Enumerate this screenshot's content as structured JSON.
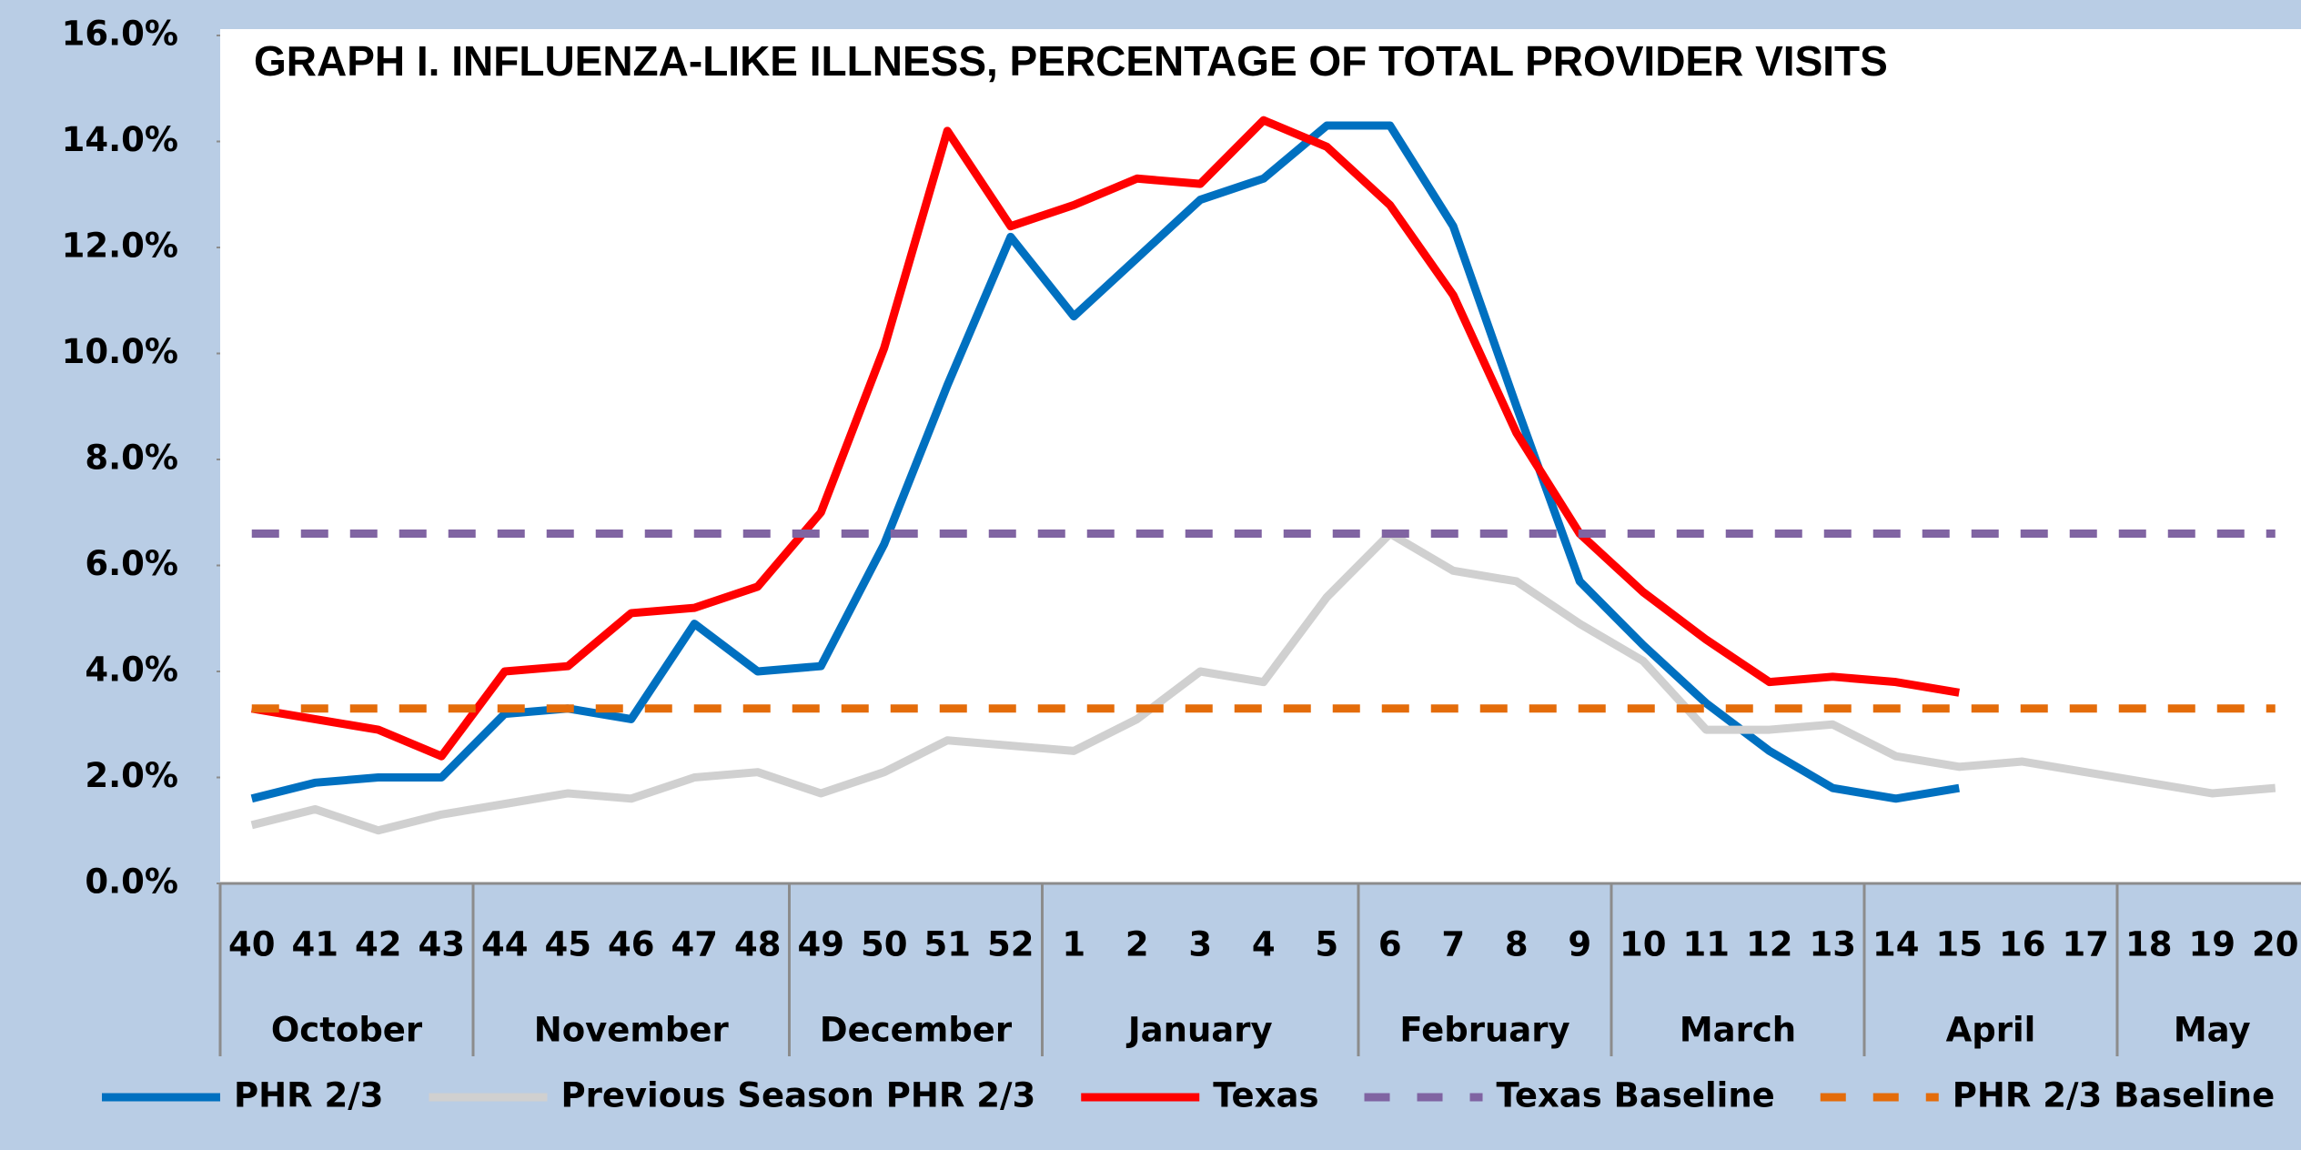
{
  "chart_data": {
    "type": "line",
    "title": "GRAPH I. INFLUENZA-LIKE ILLNESS, PERCENTAGE OF TOTAL PROVIDER VISITS",
    "categories": [
      "40",
      "41",
      "42",
      "43",
      "44",
      "45",
      "46",
      "47",
      "48",
      "49",
      "50",
      "51",
      "52",
      "1",
      "2",
      "3",
      "4",
      "5",
      "6",
      "7",
      "8",
      "9",
      "10",
      "11",
      "12",
      "13",
      "14",
      "15",
      "16",
      "17",
      "18",
      "19",
      "20"
    ],
    "months": [
      "October",
      "November",
      "December",
      "January",
      "February",
      "March",
      "April",
      "May"
    ],
    "series": [
      {
        "name": "PHR 2/3",
        "color": "#0070c0",
        "values": [
          1.6,
          1.9,
          2.0,
          2.0,
          3.2,
          3.3,
          3.1,
          4.9,
          4.0,
          4.1,
          6.4,
          9.4,
          12.2,
          10.7,
          11.8,
          12.9,
          13.3,
          14.3,
          14.3,
          12.4,
          9.0,
          5.7,
          4.5,
          3.4,
          2.5,
          1.8,
          1.6,
          1.8,
          null,
          null,
          null,
          null,
          null
        ]
      },
      {
        "name": "Previous Season PHR 2/3",
        "color": "#d0d0d0",
        "values": [
          1.1,
          1.4,
          1.0,
          1.3,
          1.5,
          1.7,
          1.6,
          2.0,
          2.1,
          1.7,
          2.1,
          2.7,
          2.6,
          2.5,
          3.1,
          4.0,
          3.8,
          5.4,
          6.6,
          5.9,
          5.7,
          4.9,
          4.2,
          2.9,
          2.9,
          3.0,
          2.4,
          2.2,
          2.3,
          2.1,
          1.9,
          1.7,
          1.8
        ]
      },
      {
        "name": "Texas",
        "color": "#ff0000",
        "values": [
          3.3,
          3.1,
          2.9,
          2.4,
          4.0,
          4.1,
          5.1,
          5.2,
          5.6,
          7.0,
          10.1,
          14.2,
          12.4,
          12.8,
          13.3,
          13.2,
          14.4,
          13.9,
          12.8,
          11.1,
          8.5,
          6.6,
          5.5,
          4.6,
          3.8,
          3.9,
          3.8,
          3.6,
          null,
          null,
          null,
          null,
          null
        ]
      },
      {
        "name": "Texas Baseline",
        "color": "#8064a2",
        "dashed": true,
        "values": [
          6.6,
          6.6,
          6.6,
          6.6,
          6.6,
          6.6,
          6.6,
          6.6,
          6.6,
          6.6,
          6.6,
          6.6,
          6.6,
          6.6,
          6.6,
          6.6,
          6.6,
          6.6,
          6.6,
          6.6,
          6.6,
          6.6,
          6.6,
          6.6,
          6.6,
          6.6,
          6.6,
          6.6,
          6.6,
          6.6,
          6.6,
          6.6,
          6.6
        ]
      },
      {
        "name": "PHR 2/3 Baseline",
        "color": "#e46c0a",
        "dashed": true,
        "values": [
          3.3,
          3.3,
          3.3,
          3.3,
          3.3,
          3.3,
          3.3,
          3.3,
          3.3,
          3.3,
          3.3,
          3.3,
          3.3,
          3.3,
          3.3,
          3.3,
          3.3,
          3.3,
          3.3,
          3.3,
          3.3,
          3.3,
          3.3,
          3.3,
          3.3,
          3.3,
          3.3,
          3.3,
          3.3,
          3.3,
          3.3,
          3.3,
          3.3
        ]
      }
    ],
    "ylim": [
      0,
      16
    ],
    "yticks": [
      {
        "value": 0,
        "label": "0.0%"
      },
      {
        "value": 2,
        "label": "2.0%"
      },
      {
        "value": 4,
        "label": "4.0%"
      },
      {
        "value": 6,
        "label": "6.0%"
      },
      {
        "value": 8,
        "label": "8.0%"
      },
      {
        "value": 10,
        "label": "10.0%"
      },
      {
        "value": 12,
        "label": "12.0%"
      },
      {
        "value": 14,
        "label": "14.0%"
      },
      {
        "value": 16,
        "label": "16.0%"
      }
    ]
  }
}
